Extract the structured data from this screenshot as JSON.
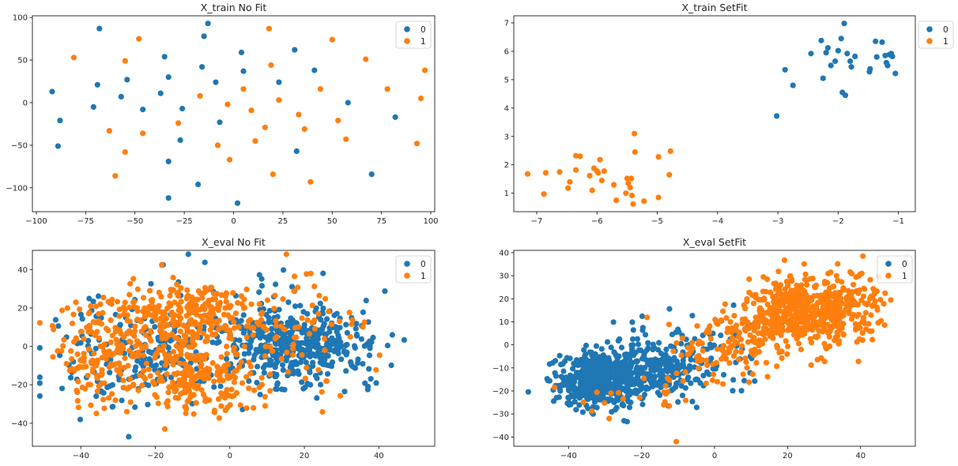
{
  "colors": {
    "c0": "#1f77b4",
    "c1": "#ff7f0e"
  },
  "chart_data": [
    {
      "type": "scatter",
      "title": "X_train No Fit",
      "xlim": [
        -102,
        102
      ],
      "ylim": [
        -128,
        102
      ],
      "xticks": [
        -100,
        -75,
        -50,
        -25,
        0,
        25,
        50,
        75,
        100
      ],
      "yticks": [
        -100,
        -50,
        0,
        50,
        100
      ],
      "legend": "top-right",
      "series": [
        {
          "name": "0",
          "points": [
            [
              -68,
              87
            ],
            [
              -92,
              13
            ],
            [
              -88,
              -21
            ],
            [
              -89,
              -51
            ],
            [
              -71,
              -5
            ],
            [
              -69,
              21
            ],
            [
              -57,
              7
            ],
            [
              -54,
              27
            ],
            [
              -46,
              -8
            ],
            [
              -37,
              11
            ],
            [
              -35,
              54
            ],
            [
              -33,
              30
            ],
            [
              -33,
              -69
            ],
            [
              -33,
              -112
            ],
            [
              -26,
              -7
            ],
            [
              -27,
              -44
            ],
            [
              -18,
              -96
            ],
            [
              -16,
              42
            ],
            [
              -15,
              78
            ],
            [
              -13,
              93
            ],
            [
              -9,
              24
            ],
            [
              -7,
              -23
            ],
            [
              2,
              -118
            ],
            [
              4,
              59
            ],
            [
              5,
              37
            ],
            [
              23,
              24
            ],
            [
              31,
              62
            ],
            [
              32,
              -57
            ],
            [
              41,
              38
            ],
            [
              58,
              0
            ],
            [
              70,
              -84
            ],
            [
              82,
              -17
            ]
          ]
        },
        {
          "name": "1",
          "points": [
            [
              -81,
              53
            ],
            [
              -63,
              -33
            ],
            [
              -60,
              -86
            ],
            [
              -55,
              49
            ],
            [
              -55,
              -58
            ],
            [
              -48,
              75
            ],
            [
              -46,
              -36
            ],
            [
              -28,
              -24
            ],
            [
              -17,
              8
            ],
            [
              -8,
              -50
            ],
            [
              -3,
              -2
            ],
            [
              -2,
              -67
            ],
            [
              5,
              16
            ],
            [
              9,
              -9
            ],
            [
              11,
              -45
            ],
            [
              16,
              -29
            ],
            [
              18,
              87
            ],
            [
              19,
              44
            ],
            [
              20,
              -84
            ],
            [
              23,
              3
            ],
            [
              33,
              -14
            ],
            [
              36,
              -31
            ],
            [
              39,
              -93
            ],
            [
              44,
              16
            ],
            [
              50,
              74
            ],
            [
              53,
              -21
            ],
            [
              57,
              -43
            ],
            [
              67,
              51
            ],
            [
              78,
              16
            ],
            [
              93,
              -48
            ],
            [
              95,
              5
            ],
            [
              97,
              38
            ]
          ]
        }
      ]
    },
    {
      "type": "scatter",
      "title": "X_train SetFit",
      "xlim": [
        -7.38,
        -0.72
      ],
      "ylim": [
        0.35,
        7.25
      ],
      "xticks": [
        -7,
        -6,
        -5,
        -4,
        -3,
        -2,
        -1
      ],
      "yticks": [
        1,
        2,
        3,
        4,
        5,
        6,
        7
      ],
      "legend": "outside top-right",
      "series": [
        {
          "name": "0",
          "points": [
            [
              -3.02,
              3.72
            ],
            [
              -2.88,
              5.35
            ],
            [
              -2.75,
              4.8
            ],
            [
              -2.45,
              5.92
            ],
            [
              -2.28,
              6.38
            ],
            [
              -2.25,
              5.05
            ],
            [
              -2.2,
              5.95
            ],
            [
              -2.17,
              6.12
            ],
            [
              -2.12,
              5.5
            ],
            [
              -2.05,
              5.65
            ],
            [
              -2.0,
              6.02
            ],
            [
              -1.95,
              6.45
            ],
            [
              -1.93,
              4.55
            ],
            [
              -1.9,
              6.98
            ],
            [
              -1.88,
              4.45
            ],
            [
              -1.85,
              5.92
            ],
            [
              -1.8,
              5.65
            ],
            [
              -1.78,
              5.45
            ],
            [
              -1.72,
              5.82
            ],
            [
              -1.48,
              5.28
            ],
            [
              -1.47,
              5.38
            ],
            [
              -1.38,
              6.35
            ],
            [
              -1.36,
              5.8
            ],
            [
              -1.27,
              6.32
            ],
            [
              -1.22,
              5.85
            ],
            [
              -1.2,
              5.6
            ],
            [
              -1.18,
              5.5
            ],
            [
              -1.15,
              5.88
            ],
            [
              -1.12,
              5.92
            ],
            [
              -1.1,
              5.82
            ],
            [
              -1.05,
              5.22
            ]
          ]
        },
        {
          "name": "1",
          "points": [
            [
              -7.15,
              1.68
            ],
            [
              -6.88,
              0.97
            ],
            [
              -6.85,
              1.72
            ],
            [
              -6.62,
              1.75
            ],
            [
              -6.48,
              1.18
            ],
            [
              -6.45,
              1.4
            ],
            [
              -6.35,
              1.82
            ],
            [
              -6.35,
              2.32
            ],
            [
              -6.28,
              2.3
            ],
            [
              -6.12,
              1.62
            ],
            [
              -6.08,
              1.1
            ],
            [
              -6.05,
              1.88
            ],
            [
              -6.0,
              1.78
            ],
            [
              -5.98,
              1.72
            ],
            [
              -5.95,
              2.18
            ],
            [
              -5.92,
              1.45
            ],
            [
              -5.88,
              1.78
            ],
            [
              -5.72,
              1.3
            ],
            [
              -5.68,
              0.75
            ],
            [
              -5.52,
              1.0
            ],
            [
              -5.5,
              1.52
            ],
            [
              -5.48,
              1.35
            ],
            [
              -5.45,
              1.2
            ],
            [
              -5.43,
              1.52
            ],
            [
              -5.42,
              0.92
            ],
            [
              -5.4,
              0.62
            ],
            [
              -5.38,
              3.1
            ],
            [
              -5.37,
              2.45
            ],
            [
              -5.22,
              0.72
            ],
            [
              -4.98,
              2.28
            ],
            [
              -4.98,
              0.85
            ],
            [
              -4.78,
              2.48
            ],
            [
              -4.8,
              1.65
            ]
          ]
        }
      ]
    },
    {
      "type": "scatter",
      "title": "X_eval No Fit",
      "xlim": [
        -53,
        55
      ],
      "ylim": [
        -52,
        50
      ],
      "xticks": [
        -40,
        -20,
        0,
        20,
        40
      ],
      "yticks": [
        -40,
        -20,
        0,
        20,
        40
      ],
      "legend": "top-right",
      "clusters": [
        {
          "series": "1",
          "n": 300,
          "center": [
            -12,
            15
          ],
          "spread": [
            14,
            13
          ],
          "note": "dense upper-left mass"
        },
        {
          "series": "1",
          "n": 200,
          "center": [
            -10,
            -18
          ],
          "spread": [
            11,
            12
          ]
        },
        {
          "series": "1",
          "n": 160,
          "center": [
            -34,
            -5
          ],
          "spread": [
            9,
            18
          ]
        },
        {
          "series": "1",
          "n": 90,
          "center": [
            15,
            5
          ],
          "spread": [
            20,
            24
          ]
        },
        {
          "series": "0",
          "n": 420,
          "center": [
            18,
            0
          ],
          "spread": [
            14,
            14
          ],
          "note": "dense right mass"
        },
        {
          "series": "0",
          "n": 170,
          "center": [
            -24,
            -5
          ],
          "spread": [
            16,
            18
          ]
        },
        {
          "series": "0",
          "n": 80,
          "center": [
            0,
            10
          ],
          "spread": [
            20,
            20
          ]
        }
      ],
      "series": [
        {
          "name": "0"
        },
        {
          "name": "1"
        }
      ]
    },
    {
      "type": "scatter",
      "title": "X_eval SetFit",
      "xlim": [
        -55,
        55
      ],
      "ylim": [
        -44,
        41
      ],
      "xticks": [
        -40,
        -20,
        0,
        20,
        40
      ],
      "yticks": [
        -40,
        -30,
        -20,
        -10,
        0,
        10,
        20,
        30,
        40
      ],
      "legend": "top-right",
      "clusters": [
        {
          "series": "0",
          "n": 560,
          "center": [
            -31,
            -15
          ],
          "spread": [
            8,
            8
          ],
          "note": "dense lower-left mass"
        },
        {
          "series": "0",
          "n": 220,
          "center": [
            -16,
            -10
          ],
          "spread": [
            10,
            9
          ]
        },
        {
          "series": "0",
          "n": 60,
          "center": [
            -2,
            -4
          ],
          "spread": [
            12,
            12
          ]
        },
        {
          "series": "1",
          "n": 520,
          "center": [
            24,
            14
          ],
          "spread": [
            11,
            10
          ],
          "note": "dense upper-right mass"
        },
        {
          "series": "1",
          "n": 130,
          "center": [
            5,
            0
          ],
          "spread": [
            10,
            10
          ]
        },
        {
          "series": "1",
          "n": 80,
          "center": [
            38,
            18
          ],
          "spread": [
            6,
            8
          ]
        },
        {
          "series": "1",
          "n": 25,
          "center": [
            -18,
            -22
          ],
          "spread": [
            12,
            9
          ]
        }
      ],
      "series": [
        {
          "name": "0"
        },
        {
          "name": "1"
        }
      ]
    }
  ]
}
